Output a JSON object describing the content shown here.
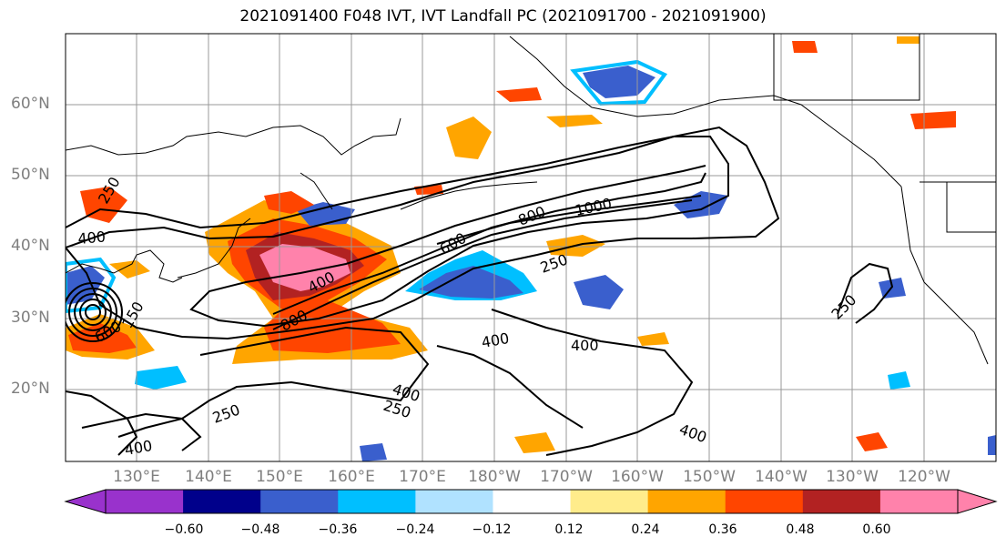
{
  "title": "2021091400 F048 IVT, IVT Landfall PC (2021091700 - 2021091900)",
  "lat_labels": [
    "60°N",
    "50°N",
    "40°N",
    "30°N",
    "20°N"
  ],
  "lon_labels": [
    "130°E",
    "140°E",
    "150°E",
    "160°E",
    "170°E",
    "180°W",
    "170°W",
    "160°W",
    "150°W",
    "140°W",
    "130°W",
    "120°W"
  ],
  "colorbar": {
    "ticks": [
      "−0.60",
      "−0.48",
      "−0.36",
      "−0.24",
      "−0.12",
      "0.12",
      "0.24",
      "0.36",
      "0.48",
      "0.60"
    ],
    "colors": [
      "#9932cc",
      "#00008b",
      "#3a5fcd",
      "#00bfff",
      "#b0e2ff",
      "#ffffff",
      "#ffec8b",
      "#ffa500",
      "#ff4500",
      "#b22222",
      "#ff82ab"
    ]
  },
  "contour_labels": [
    "1000",
    "800",
    "800",
    "600",
    "600",
    "400",
    "400",
    "400",
    "400",
    "400",
    "400",
    "400",
    "250",
    "250",
    "250",
    "250",
    "250",
    "150"
  ],
  "colors": {
    "contour": "#000000",
    "grid": "#999999",
    "coast": "#000000"
  }
}
